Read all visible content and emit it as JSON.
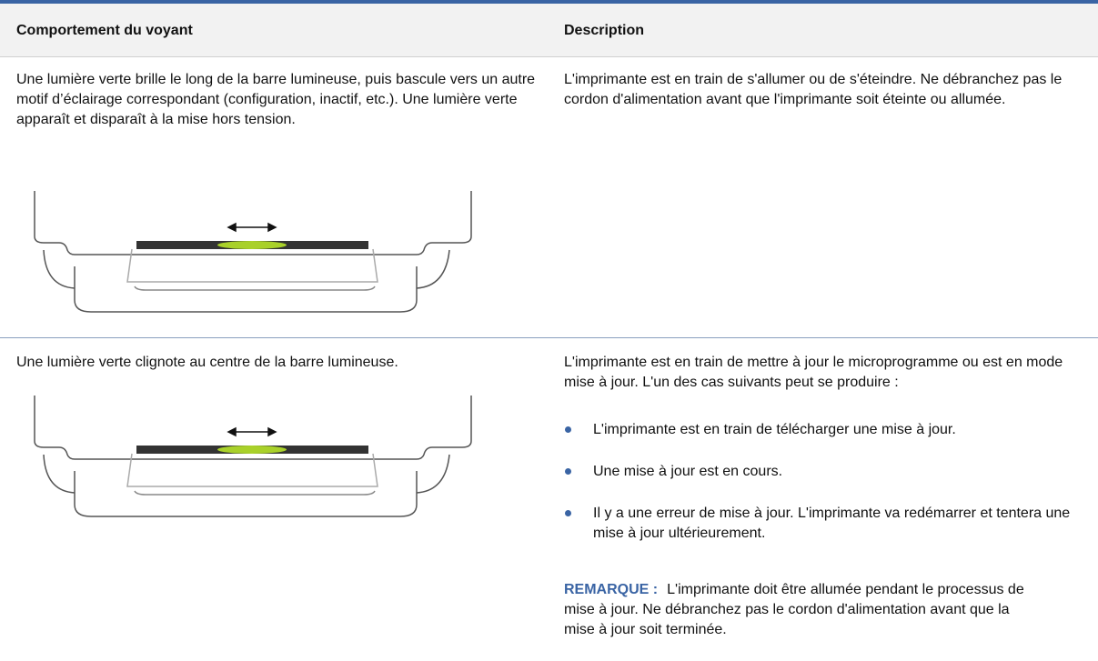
{
  "table": {
    "headers": [
      "Comportement du voyant",
      "Description"
    ],
    "rows": [
      {
        "behavior": "Une lumière verte brille le long de la barre lumineuse, puis bascule vers un autre motif d’éclairage correspondant (configuration, inactif, etc.). Une lumière verte apparaît et disparaît à la mise hors tension.",
        "description": "L'imprimante est en train de s'allumer ou de s'éteindre. Ne débranchez pas le cordon d'alimentation avant que l'imprimante soit éteinte ou allumée."
      },
      {
        "behavior": "Une lumière verte clignote au centre de la barre lumineuse.",
        "description": "L'imprimante est en train de mettre à jour le microprogramme ou est en mode mise à jour. L'un des cas suivants peut se produire :",
        "bullets": [
          "L'imprimante est en train de télécharger une mise à jour.",
          "Une mise à jour est en cours.",
          "Il y a une erreur de mise à jour. L'imprimante va redémarrer et tentera une mise à jour ultérieurement."
        ],
        "note": {
          "label": "REMARQUE :",
          "text": "L'imprimante doit être allumée pendant le processus de mise à jour. Ne débranchez pas le cordon d'alimentation avant que la mise à jour soit terminée."
        }
      }
    ]
  }
}
